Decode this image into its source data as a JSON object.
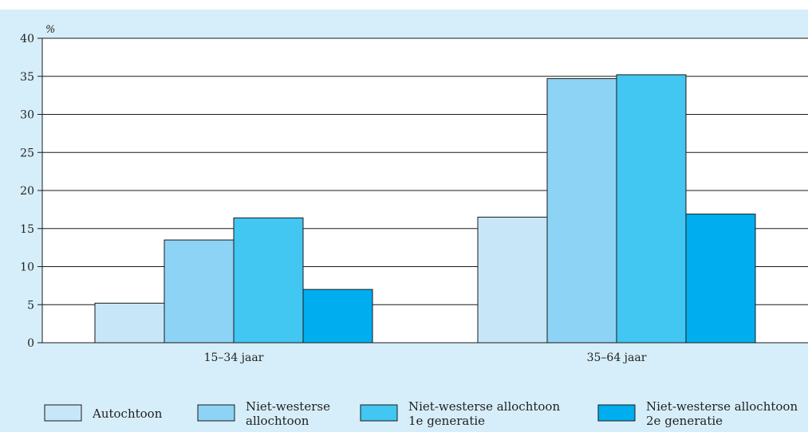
{
  "chart_data": {
    "type": "bar",
    "y_unit_label": "%",
    "ylim": [
      0,
      40
    ],
    "y_ticks": [
      0,
      5,
      10,
      15,
      20,
      25,
      30,
      35,
      40
    ],
    "grid": true,
    "legend_placement": "bottom",
    "categories": [
      "15–34 jaar",
      "35–64 jaar"
    ],
    "series": [
      {
        "name": "Autochtoon",
        "legend_lines": [
          "Autochtoon"
        ],
        "color": "#c7e7f8",
        "values": [
          5.2,
          16.5
        ]
      },
      {
        "name": "Niet-westerse allochtoon",
        "legend_lines": [
          "Niet-westerse",
          "allochtoon"
        ],
        "color": "#8dd3f5",
        "values": [
          13.5,
          34.7
        ]
      },
      {
        "name": "Niet-westerse allochtoon 1e generatie",
        "legend_lines": [
          "Niet-westerse allochtoon",
          "1e generatie"
        ],
        "color": "#42c6f2",
        "values": [
          16.4,
          35.2
        ]
      },
      {
        "name": "Niet-westerse allochtoon 2e generatie",
        "legend_lines": [
          "Niet-westerse allochtoon",
          "2e generatie"
        ],
        "color": "#00aeef",
        "values": [
          7.0,
          16.9
        ]
      }
    ],
    "background_color": "#d6eef9",
    "plot_background_color": "#ffffff"
  }
}
